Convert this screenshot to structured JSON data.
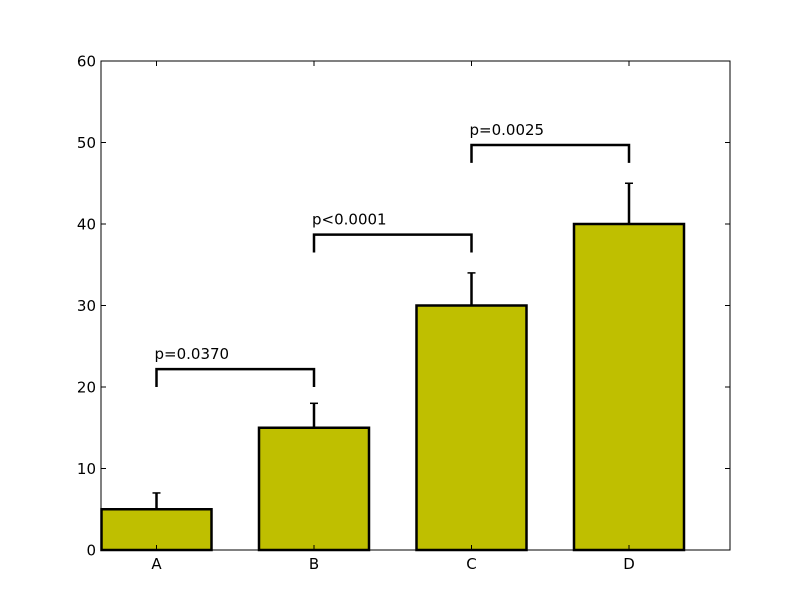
{
  "chart_data": {
    "type": "bar",
    "categories": [
      "A",
      "B",
      "C",
      "D"
    ],
    "values": [
      5,
      15,
      30,
      40
    ],
    "errors": [
      2,
      3,
      4,
      5
    ],
    "ylim": [
      0,
      60
    ],
    "yticks": [
      "0",
      "10",
      "20",
      "30",
      "40",
      "50",
      "60"
    ],
    "bar_color": "#bfbf00",
    "title": "",
    "xlabel": "",
    "ylabel": "",
    "annotations": [
      {
        "from": "A",
        "to": "B",
        "label": "p=0.0370",
        "y": 22.2,
        "left_drop": 20,
        "right_drop": 20
      },
      {
        "from": "B",
        "to": "C",
        "label": "p<0.0001",
        "y": 38.7,
        "left_drop": 36.5,
        "right_drop": 36.5
      },
      {
        "from": "C",
        "to": "D",
        "label": "p=0.0025",
        "y": 49.7,
        "left_drop": 47.5,
        "right_drop": 47.5
      }
    ]
  }
}
